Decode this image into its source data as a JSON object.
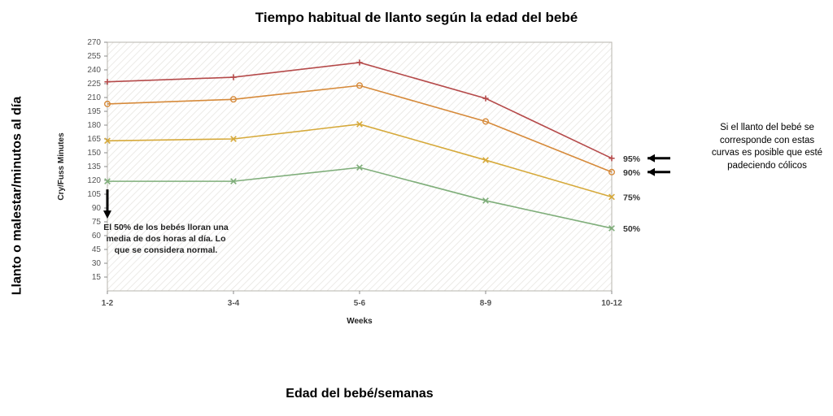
{
  "title": "Tiempo habitual de llanto según la edad del bebé",
  "y_axis_label_outer": "Llanto o malestar/minutos al día",
  "x_axis_label_outer": "Edad del bebé/semanas",
  "y_axis_label_inner": "Cry/Fuss Minutes",
  "x_axis_label_inner": "Weeks",
  "chart": {
    "type": "line",
    "x_categories": [
      "1-2",
      "3-4",
      "5-6",
      "8-9",
      "10-12"
    ],
    "ylim": [
      0,
      270
    ],
    "ytick_step": 15,
    "background_color": "#ffffff",
    "hatch_color": "#e6e4df",
    "border_color": "#b7b4ad",
    "title_fontsize": 17,
    "axis_fontsize": 10,
    "line_width": 1.6,
    "marker_size": 6,
    "series": [
      {
        "name": "95%",
        "marker": "plus",
        "color": "#b54a4a",
        "values": [
          227,
          232,
          248,
          209,
          144
        ]
      },
      {
        "name": "90%",
        "marker": "circle",
        "color": "#d68a3a",
        "values": [
          203,
          208,
          223,
          184,
          129
        ]
      },
      {
        "name": "75%",
        "marker": "x",
        "color": "#d6a93a",
        "values": [
          163,
          165,
          181,
          142,
          102
        ]
      },
      {
        "name": "50%",
        "marker": "x",
        "color": "#7fae7a",
        "values": [
          119,
          119,
          134,
          98,
          68
        ]
      }
    ]
  },
  "end_labels": [
    {
      "text": "95%",
      "arrow": true
    },
    {
      "text": "90%",
      "arrow": true
    },
    {
      "text": "75%",
      "arrow": false
    },
    {
      "text": "50%",
      "arrow": false
    }
  ],
  "annotation_50": {
    "line1": "El 50% de los bebés lloran una",
    "line2": "media de dos horas al día. Lo",
    "line3": "que se considera normal."
  },
  "right_note": "Si el llanto del bebé se corresponde con estas curvas es posible que esté padeciendo cólicos"
}
